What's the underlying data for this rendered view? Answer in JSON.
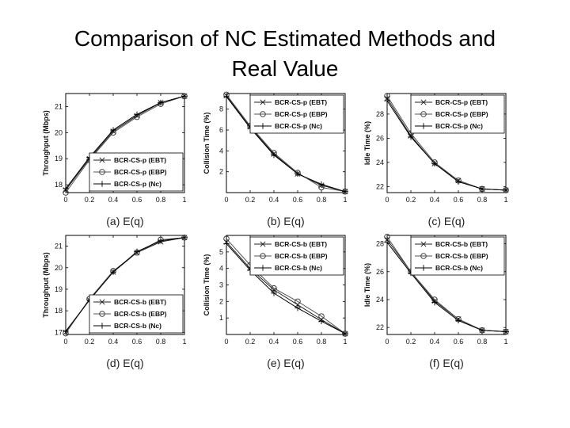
{
  "slide": {
    "title_line1": "Comparison of NC Estimated Methods and",
    "title_line2": "Real Value"
  },
  "chart_data": [
    {
      "type": "line",
      "caption": "(a) E(q)",
      "ylabel": "Throughput (Mbps)",
      "xlim": [
        0,
        1
      ],
      "ylim": [
        17.7,
        21.5
      ],
      "xticks": [
        0,
        0.2,
        0.4,
        0.6,
        0.8,
        1
      ],
      "yticks": [
        18,
        19,
        20,
        21
      ],
      "grid": false,
      "legend_position": "bottom-right",
      "x": [
        0,
        0.2,
        0.4,
        0.6,
        0.8,
        1
      ],
      "series": [
        {
          "name": "BCR-CS-p (EBT)",
          "marker": "x",
          "values": [
            17.8,
            19.0,
            20.05,
            20.65,
            21.15,
            21.4
          ]
        },
        {
          "name": "BCR-CS-p (EBP)",
          "marker": "o",
          "values": [
            17.7,
            18.95,
            20.0,
            20.6,
            21.1,
            21.4
          ]
        },
        {
          "name": "BCR-CS-p (Nc)",
          "marker": "+",
          "values": [
            17.85,
            19.05,
            20.1,
            20.7,
            21.15,
            21.4
          ]
        }
      ]
    },
    {
      "type": "line",
      "caption": "(b) E(q)",
      "ylabel": "Collision Time (%)",
      "xlim": [
        0,
        1
      ],
      "ylim": [
        0,
        9.5
      ],
      "xticks": [
        0,
        0.2,
        0.4,
        0.6,
        0.8,
        1
      ],
      "yticks": [
        2,
        4,
        6,
        8
      ],
      "grid": false,
      "legend_position": "top-right",
      "x": [
        0,
        0.2,
        0.4,
        0.6,
        0.8,
        1
      ],
      "series": [
        {
          "name": "BCR-CS-p (EBT)",
          "marker": "x",
          "values": [
            9.3,
            6.3,
            3.7,
            1.8,
            0.7,
            0.1
          ]
        },
        {
          "name": "BCR-CS-p (EBP)",
          "marker": "o",
          "values": [
            9.4,
            6.4,
            3.8,
            1.9,
            0.5,
            0.1
          ]
        },
        {
          "name": "BCR-CS-p (Nc)",
          "marker": "+",
          "values": [
            9.2,
            6.2,
            3.6,
            1.8,
            0.8,
            0.1
          ]
        }
      ]
    },
    {
      "type": "line",
      "caption": "(c) E(q)",
      "ylabel": "Idle Time (%)",
      "xlim": [
        0,
        1
      ],
      "ylim": [
        21.5,
        29.7
      ],
      "xticks": [
        0,
        0.2,
        0.4,
        0.6,
        0.8,
        1
      ],
      "yticks": [
        22,
        24,
        26,
        28
      ],
      "grid": false,
      "legend_position": "top-right",
      "x": [
        0,
        0.2,
        0.4,
        0.6,
        0.8,
        1
      ],
      "series": [
        {
          "name": "BCR-CS-p (EBT)",
          "marker": "x",
          "values": [
            29.3,
            26.2,
            23.9,
            22.5,
            21.8,
            21.7
          ]
        },
        {
          "name": "BCR-CS-p (EBP)",
          "marker": "o",
          "values": [
            29.5,
            26.4,
            24.0,
            22.5,
            21.8,
            21.7
          ]
        },
        {
          "name": "BCR-CS-p (Nc)",
          "marker": "+",
          "values": [
            29.1,
            26.1,
            23.9,
            22.4,
            21.8,
            21.7
          ]
        }
      ]
    },
    {
      "type": "line",
      "caption": "(d) E(q)",
      "ylabel": "Throughput (Mbps)",
      "xlim": [
        0,
        1
      ],
      "ylim": [
        16.9,
        21.5
      ],
      "xticks": [
        0,
        0.2,
        0.4,
        0.6,
        0.8,
        1
      ],
      "yticks": [
        17,
        18,
        19,
        20,
        21
      ],
      "grid": false,
      "legend_position": "bottom-right",
      "x": [
        0,
        0.2,
        0.4,
        0.6,
        0.8,
        1
      ],
      "series": [
        {
          "name": "BCR-CS-b (EBT)",
          "marker": "x",
          "values": [
            17.0,
            18.5,
            19.8,
            20.7,
            21.2,
            21.4
          ]
        },
        {
          "name": "BCR-CS-b (EBP)",
          "marker": "o",
          "values": [
            16.95,
            18.55,
            19.85,
            20.7,
            21.3,
            21.4
          ]
        },
        {
          "name": "BCR-CS-b (Nc)",
          "marker": "+",
          "values": [
            17.05,
            18.5,
            19.8,
            20.75,
            21.25,
            21.4
          ]
        }
      ]
    },
    {
      "type": "line",
      "caption": "(e) E(q)",
      "ylabel": "Collision Time (%)",
      "xlim": [
        0,
        1
      ],
      "ylim": [
        0,
        6.0
      ],
      "xticks": [
        0,
        0.2,
        0.4,
        0.6,
        0.8,
        1
      ],
      "yticks": [
        1,
        2,
        3,
        4,
        5
      ],
      "grid": false,
      "legend_position": "top-right",
      "x": [
        0,
        0.2,
        0.4,
        0.6,
        0.8,
        1
      ],
      "series": [
        {
          "name": "BCR-CS-b (EBT)",
          "marker": "x",
          "values": [
            5.6,
            4.0,
            2.7,
            1.8,
            0.9,
            0.05
          ]
        },
        {
          "name": "BCR-CS-b (EBP)",
          "marker": "o",
          "values": [
            5.8,
            4.2,
            2.8,
            2.0,
            1.1,
            0.05
          ]
        },
        {
          "name": "BCR-CS-b (Nc)",
          "marker": "+",
          "values": [
            5.5,
            3.9,
            2.5,
            1.6,
            0.8,
            0.05
          ]
        }
      ]
    },
    {
      "type": "line",
      "caption": "(f) E(q)",
      "ylabel": "Idle Time (%)",
      "xlim": [
        0,
        1
      ],
      "ylim": [
        21.5,
        28.6
      ],
      "xticks": [
        0,
        0.2,
        0.4,
        0.6,
        0.8,
        1
      ],
      "yticks": [
        22,
        24,
        26,
        28
      ],
      "grid": false,
      "legend_position": "top-right",
      "x": [
        0,
        0.2,
        0.4,
        0.6,
        0.8,
        1
      ],
      "series": [
        {
          "name": "BCR-CS-b (EBT)",
          "marker": "x",
          "values": [
            28.3,
            26.0,
            23.9,
            22.6,
            21.8,
            21.7
          ]
        },
        {
          "name": "BCR-CS-b (EBP)",
          "marker": "o",
          "values": [
            28.5,
            26.0,
            24.0,
            22.6,
            21.8,
            21.7
          ]
        },
        {
          "name": "BCR-CS-b (Nc)",
          "marker": "+",
          "values": [
            28.1,
            25.9,
            23.8,
            22.5,
            21.8,
            21.7
          ]
        }
      ]
    }
  ]
}
